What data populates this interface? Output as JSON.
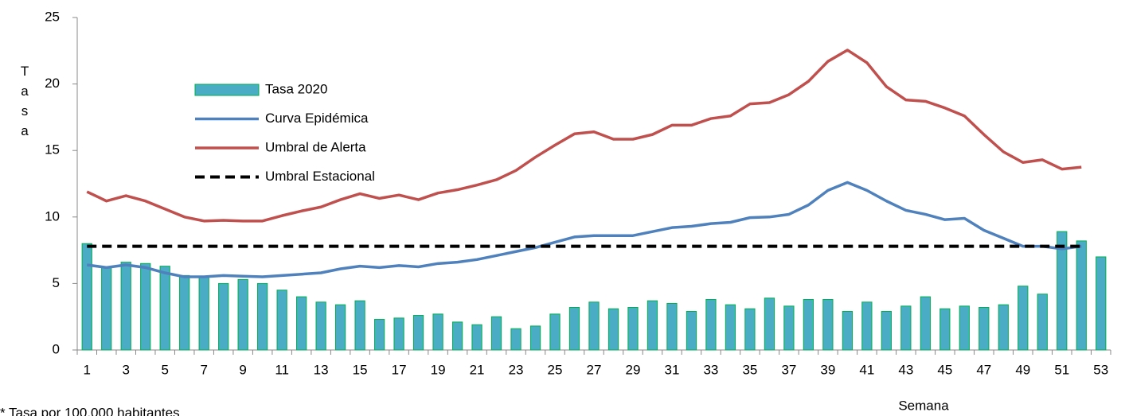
{
  "chart_data": {
    "type": "combo",
    "y_label": "Tasa",
    "x_label": "Semana",
    "footnote": "* Tasa por 100.000 habitantes",
    "categories": [
      1,
      null,
      3,
      null,
      5,
      null,
      7,
      null,
      9,
      null,
      11,
      null,
      13,
      null,
      15,
      null,
      17,
      null,
      19,
      null,
      21,
      null,
      23,
      null,
      25,
      null,
      27,
      null,
      29,
      null,
      31,
      null,
      33,
      null,
      35,
      null,
      37,
      null,
      39,
      null,
      41,
      null,
      43,
      null,
      45,
      null,
      47,
      null,
      49,
      null,
      51,
      null,
      53
    ],
    "ylim": [
      0,
      25
    ],
    "yticks": [
      0,
      5,
      10,
      15,
      20,
      25
    ],
    "legend": "upper-left",
    "series": [
      {
        "name": "Tasa 2020",
        "type": "bar",
        "color": "#4bacc6",
        "edge_color": "#00b050",
        "values": [
          8.0,
          6.2,
          6.6,
          6.5,
          6.3,
          5.6,
          5.5,
          5.0,
          5.3,
          5.0,
          4.5,
          4.0,
          3.6,
          3.4,
          3.7,
          2.3,
          2.4,
          2.6,
          2.7,
          2.1,
          1.9,
          2.5,
          1.6,
          1.8,
          2.7,
          3.2,
          3.6,
          3.1,
          3.2,
          3.7,
          3.5,
          2.9,
          3.8,
          3.4,
          3.1,
          3.9,
          3.3,
          3.8,
          3.8,
          2.9,
          3.6,
          2.9,
          3.3,
          4.0,
          3.1,
          3.3,
          3.2,
          3.4,
          4.8,
          4.2,
          8.9,
          8.2,
          7.0
        ]
      },
      {
        "name": "Curva Epidémica",
        "type": "line",
        "color": "#4f81bd",
        "dashed": false,
        "values": [
          6.4,
          6.2,
          6.4,
          6.2,
          5.8,
          5.5,
          5.5,
          5.6,
          5.55,
          5.5,
          5.6,
          5.7,
          5.8,
          6.1,
          6.3,
          6.2,
          6.35,
          6.25,
          6.5,
          6.6,
          6.8,
          7.1,
          7.4,
          7.7,
          8.1,
          8.5,
          8.6,
          8.6,
          8.6,
          8.9,
          9.2,
          9.3,
          9.5,
          9.6,
          9.95,
          10.0,
          10.2,
          10.9,
          12.0,
          12.6,
          12.0,
          11.2,
          10.5,
          10.2,
          9.8,
          9.9,
          9.0,
          8.4,
          7.8,
          7.8,
          7.6,
          7.8,
          null
        ]
      },
      {
        "name": "Umbral de Alerta",
        "type": "line",
        "color": "#c0504d",
        "dashed": false,
        "values": [
          11.9,
          11.2,
          11.6,
          11.2,
          10.6,
          10.0,
          9.7,
          9.75,
          9.7,
          9.7,
          10.1,
          10.45,
          10.75,
          11.3,
          11.75,
          11.4,
          11.65,
          11.3,
          11.8,
          12.05,
          12.4,
          12.8,
          13.5,
          14.5,
          15.4,
          16.25,
          16.4,
          15.85,
          15.85,
          16.2,
          16.9,
          16.9,
          17.4,
          17.6,
          18.5,
          18.6,
          19.2,
          20.2,
          21.7,
          22.55,
          21.6,
          19.8,
          18.8,
          18.7,
          18.2,
          17.6,
          16.2,
          14.9,
          14.1,
          14.3,
          13.6,
          13.75,
          null
        ]
      },
      {
        "name": "Umbral Estacional",
        "type": "line",
        "color": "#000000",
        "dashed": true,
        "values": [
          7.8,
          7.8,
          7.8,
          7.8,
          7.8,
          7.8,
          7.8,
          7.8,
          7.8,
          7.8,
          7.8,
          7.8,
          7.8,
          7.8,
          7.8,
          7.8,
          7.8,
          7.8,
          7.8,
          7.8,
          7.8,
          7.8,
          7.8,
          7.8,
          7.8,
          7.8,
          7.8,
          7.8,
          7.8,
          7.8,
          7.8,
          7.8,
          7.8,
          7.8,
          7.8,
          7.8,
          7.8,
          7.8,
          7.8,
          7.8,
          7.8,
          7.8,
          7.8,
          7.8,
          7.8,
          7.8,
          7.8,
          7.8,
          7.8,
          7.8,
          7.8,
          7.8,
          null
        ]
      }
    ]
  }
}
